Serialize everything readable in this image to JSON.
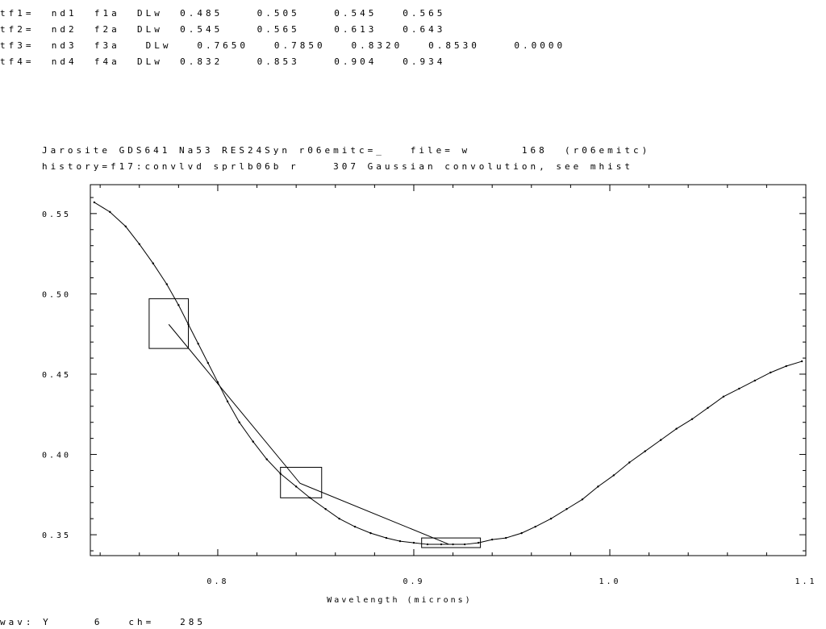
{
  "tf_lines": [
    "tf1=  nd1  f1a  DLw  0.485    0.505    0.545   0.565",
    "tf2=  nd2  f2a  DLw  0.545    0.565    0.613   0.643",
    "tf3=  nd3  f3a   DLw   0.7650   0.7850   0.8320   0.8530    0.0000",
    "tf4=  nd4  f4a  DLw  0.832    0.853    0.904   0.934"
  ],
  "header_line1": "Jarosite GDS641 Na53 RES24Syn r06emitc=_   file= w      168  (r06emitc)",
  "header_line2": "history=f17:convlvd sprlb06b r    307 Gaussian convolution, see mhist",
  "status_line": "wav: Y     6   ch=   285",
  "chart_data": {
    "type": "line",
    "xlabel": "Wavelength (microns)",
    "ylabel": "",
    "xlim": [
      0.735,
      1.1
    ],
    "ylim": [
      0.337,
      0.568
    ],
    "x_ticks": [
      "0.8",
      "0.9",
      "1.0",
      "1.1"
    ],
    "x_tick_values": [
      0.8,
      0.9,
      1.0,
      1.1
    ],
    "y_ticks": [
      "0.55",
      "0.50",
      "0.45",
      "0.40",
      "0.35"
    ],
    "y_tick_values": [
      0.55,
      0.5,
      0.45,
      0.4,
      0.35
    ],
    "series": [
      {
        "x": [
          0.737,
          0.745,
          0.753,
          0.76,
          0.767,
          0.774,
          0.78,
          0.785,
          0.79,
          0.795,
          0.8,
          0.805,
          0.811,
          0.818,
          0.825,
          0.832,
          0.84,
          0.847,
          0.855,
          0.862,
          0.87,
          0.878,
          0.886,
          0.893,
          0.9,
          0.907,
          0.914,
          0.92,
          0.926,
          0.933,
          0.94,
          0.947,
          0.955,
          0.962,
          0.97,
          0.978,
          0.986,
          0.994,
          1.002,
          1.01,
          1.018,
          1.026,
          1.034,
          1.042,
          1.05,
          1.058,
          1.066,
          1.074,
          1.082,
          1.09,
          1.098
        ],
        "y": [
          0.557,
          0.551,
          0.542,
          0.531,
          0.519,
          0.506,
          0.493,
          0.481,
          0.469,
          0.457,
          0.445,
          0.433,
          0.42,
          0.408,
          0.397,
          0.388,
          0.38,
          0.373,
          0.366,
          0.36,
          0.355,
          0.351,
          0.348,
          0.346,
          0.345,
          0.344,
          0.344,
          0.344,
          0.344,
          0.345,
          0.347,
          0.348,
          0.351,
          0.355,
          0.36,
          0.366,
          0.372,
          0.38,
          0.387,
          0.395,
          0.402,
          0.409,
          0.416,
          0.422,
          0.429,
          0.436,
          0.441,
          0.446,
          0.451,
          0.455,
          0.458
        ]
      }
    ],
    "continuum_line": {
      "x": [
        0.775,
        0.842,
        0.918,
        0.926
      ],
      "y": [
        0.481,
        0.382,
        0.344,
        0.344
      ]
    },
    "feature_boxes": [
      {
        "x": [
          0.765,
          0.785
        ],
        "y": [
          0.466,
          0.497
        ]
      },
      {
        "x": [
          0.832,
          0.853
        ],
        "y": [
          0.373,
          0.392
        ]
      },
      {
        "x": [
          0.904,
          0.934
        ],
        "y": [
          0.342,
          0.348
        ]
      }
    ]
  }
}
